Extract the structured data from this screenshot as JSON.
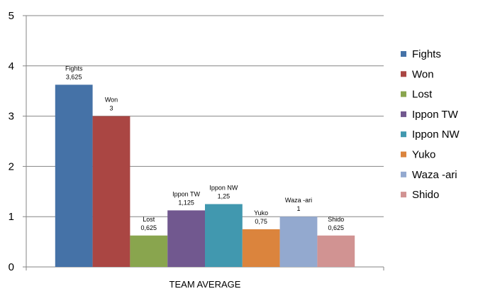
{
  "chart_data": {
    "type": "bar",
    "categories": [
      "TEAM AVERAGE"
    ],
    "series": [
      {
        "name": "Fights",
        "values": [
          3.625
        ],
        "label": "3,625",
        "color": "#4572A7"
      },
      {
        "name": "Won",
        "values": [
          3
        ],
        "label": "3",
        "color": "#AA4643"
      },
      {
        "name": "Lost",
        "values": [
          0.625
        ],
        "label": "0,625",
        "color": "#89A54E"
      },
      {
        "name": "Ippon TW",
        "values": [
          1.125
        ],
        "label": "1,125",
        "color": "#71588F"
      },
      {
        "name": "Ippon NW",
        "values": [
          1.25
        ],
        "label": "1,25",
        "color": "#4198AF"
      },
      {
        "name": "Yuko",
        "values": [
          0.75
        ],
        "label": "0,75",
        "color": "#DB843D"
      },
      {
        "name": "Waza -ari",
        "values": [
          1
        ],
        "label": "1",
        "color": "#93A9CF"
      },
      {
        "name": "Shido",
        "values": [
          0.625
        ],
        "label": "0,625",
        "color": "#D19392"
      }
    ],
    "ylim": [
      0,
      5
    ],
    "yticks": [
      "0",
      "1",
      "2",
      "3",
      "4",
      "5"
    ],
    "grid": true,
    "legend": "right",
    "title": "",
    "xlabel": "",
    "ylabel": ""
  }
}
